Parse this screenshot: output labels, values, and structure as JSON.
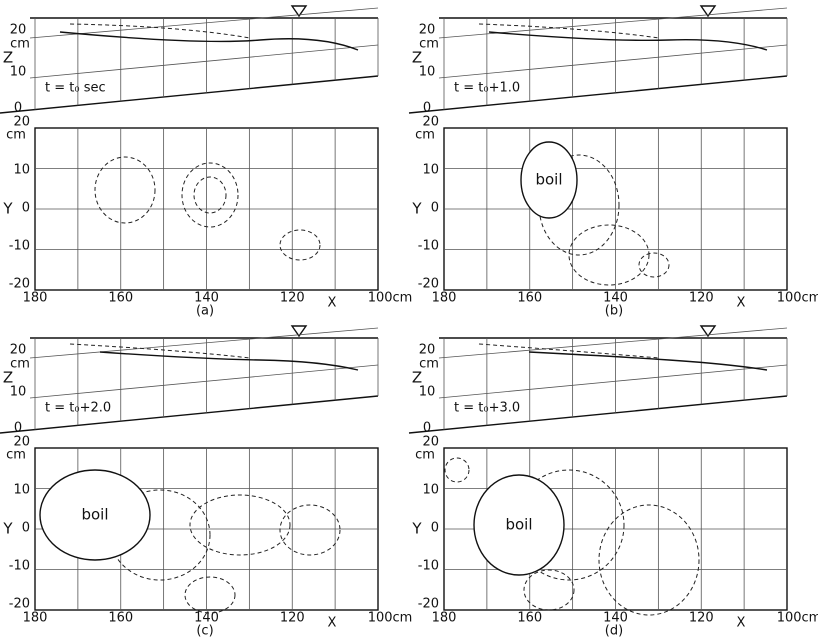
{
  "panels": [
    {
      "label": "(a)",
      "time": "t = t₀ sec",
      "boil": null,
      "profile": {
        "z_label": "Z",
        "z_unit": "cm",
        "z_ticks": [
          "20",
          "10",
          "0"
        ]
      },
      "plan": {
        "y_label": "Y",
        "y_unit": "cm",
        "y_ticks": [
          "20",
          "10",
          "0",
          "-10",
          "-20"
        ],
        "x_label": "X",
        "x_ticks": [
          "180",
          "160",
          "140",
          "120",
          "100cm"
        ]
      }
    },
    {
      "label": "(b)",
      "time": "t = t₀+1.0",
      "boil": "boil",
      "profile": {
        "z_label": "Z",
        "z_unit": "cm",
        "z_ticks": [
          "20",
          "10",
          "0"
        ]
      },
      "plan": {
        "y_label": "Y",
        "y_unit": "cm",
        "y_ticks": [
          "20",
          "10",
          "0",
          "-10",
          "-20"
        ],
        "x_label": "X",
        "x_ticks": [
          "180",
          "160",
          "140",
          "120",
          "100cm"
        ]
      }
    },
    {
      "label": "(c)",
      "time": "t = t₀+2.0",
      "boil": "boil",
      "profile": {
        "z_label": "Z",
        "z_unit": "cm",
        "z_ticks": [
          "20",
          "10",
          "0"
        ]
      },
      "plan": {
        "y_label": "Y",
        "y_unit": "cm",
        "y_ticks": [
          "20",
          "10",
          "0",
          "-10",
          "-20"
        ],
        "x_label": "X",
        "x_ticks": [
          "180",
          "160",
          "140",
          "120",
          "100cm"
        ]
      }
    },
    {
      "label": "(d)",
      "time": "t = t₀+3.0",
      "boil": "boil",
      "profile": {
        "z_label": "Z",
        "z_unit": "cm",
        "z_ticks": [
          "20",
          "10",
          "0"
        ]
      },
      "plan": {
        "y_label": "Y",
        "y_unit": "cm",
        "y_ticks": [
          "20",
          "10",
          "0",
          "-10",
          "-20"
        ],
        "x_label": "X",
        "x_ticks": [
          "180",
          "160",
          "140",
          "120",
          "100cm"
        ]
      }
    }
  ]
}
